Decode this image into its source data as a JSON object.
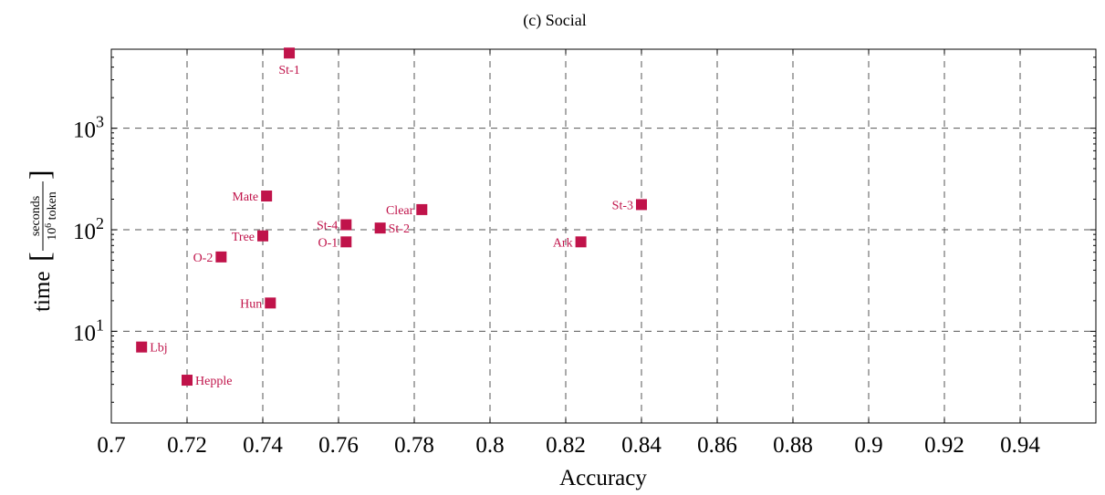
{
  "chart_data": {
    "type": "scatter",
    "title": "(c) Social",
    "xlabel": "Accuracy",
    "ylabel": {
      "prefix": "time",
      "numerator": "seconds",
      "denominator_base": "10",
      "denominator_exp": "6",
      "denominator_unit": "token"
    },
    "xlim": [
      0.7,
      0.96
    ],
    "ylim": [
      1.25,
      6000
    ],
    "yscale": "log",
    "grid": true,
    "x_ticks": [
      "0.7",
      "0.72",
      "0.74",
      "0.76",
      "0.78",
      "0.8",
      "0.82",
      "0.84",
      "0.86",
      "0.88",
      "0.9",
      "0.92",
      "0.94"
    ],
    "x_tick_values": [
      0.7,
      0.72,
      0.74,
      0.76,
      0.78,
      0.8,
      0.82,
      0.84,
      0.86,
      0.88,
      0.9,
      0.92,
      0.94
    ],
    "y_ticks": [
      {
        "value": 10,
        "base": "10",
        "exp": "1"
      },
      {
        "value": 100,
        "base": "10",
        "exp": "2"
      },
      {
        "value": 1000,
        "base": "10",
        "exp": "3"
      }
    ],
    "color": "#c0134a",
    "points": [
      {
        "label": "St-1",
        "x": 0.747,
        "y": 5500,
        "pos": "below"
      },
      {
        "label": "Mate",
        "x": 0.741,
        "y": 215,
        "pos": "left"
      },
      {
        "label": "Tree",
        "x": 0.74,
        "y": 87,
        "pos": "left"
      },
      {
        "label": "O-2",
        "x": 0.729,
        "y": 54,
        "pos": "left"
      },
      {
        "label": "Hun",
        "x": 0.742,
        "y": 19,
        "pos": "left"
      },
      {
        "label": "Lbj",
        "x": 0.708,
        "y": 7,
        "pos": "right"
      },
      {
        "label": "Hepple",
        "x": 0.72,
        "y": 3.3,
        "pos": "right"
      },
      {
        "label": "St-4",
        "x": 0.762,
        "y": 112,
        "pos": "left"
      },
      {
        "label": "O-1",
        "x": 0.762,
        "y": 76,
        "pos": "left"
      },
      {
        "label": "St-2",
        "x": 0.771,
        "y": 104,
        "pos": "right"
      },
      {
        "label": "Clear",
        "x": 0.782,
        "y": 158,
        "pos": "left"
      },
      {
        "label": "Ark",
        "x": 0.824,
        "y": 76,
        "pos": "left"
      },
      {
        "label": "St-3",
        "x": 0.84,
        "y": 177,
        "pos": "left"
      }
    ]
  }
}
